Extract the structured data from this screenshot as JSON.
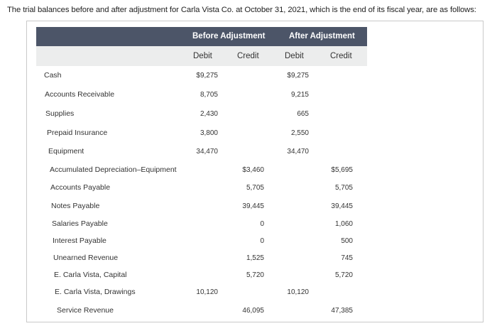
{
  "intro_text": "The trial balances before and after adjustment for Carla Vista Co. at October 31, 2021, which is the end of its fiscal year, are as follows:",
  "table": {
    "group_before": "Before Adjustment",
    "group_after": "After Adjustment",
    "col_debit": "Debit",
    "col_credit": "Credit",
    "rows": [
      {
        "account": "Cash",
        "before_debit": "$9,275",
        "before_credit": "",
        "after_debit": "$9,275",
        "after_credit": ""
      },
      {
        "account": "Accounts Receivable",
        "before_debit": "8,705",
        "before_credit": "",
        "after_debit": "9,215",
        "after_credit": ""
      },
      {
        "account": "Supplies",
        "before_debit": "2,430",
        "before_credit": "",
        "after_debit": "665",
        "after_credit": ""
      },
      {
        "account": "Prepaid Insurance",
        "before_debit": "3,800",
        "before_credit": "",
        "after_debit": "2,550",
        "after_credit": ""
      },
      {
        "account": "Equipment",
        "before_debit": "34,470",
        "before_credit": "",
        "after_debit": "34,470",
        "after_credit": ""
      },
      {
        "account": "Accumulated Depreciation–Equipment",
        "before_debit": "",
        "before_credit": "$3,460",
        "after_debit": "",
        "after_credit": "$5,695"
      },
      {
        "account": "Accounts Payable",
        "before_debit": "",
        "before_credit": "5,705",
        "after_debit": "",
        "after_credit": "5,705"
      },
      {
        "account": "Notes Payable",
        "before_debit": "",
        "before_credit": "39,445",
        "after_debit": "",
        "after_credit": "39,445"
      },
      {
        "account": "Salaries Payable",
        "before_debit": "",
        "before_credit": "0",
        "after_debit": "",
        "after_credit": "1,060"
      },
      {
        "account": "Interest Payable",
        "before_debit": "",
        "before_credit": "0",
        "after_debit": "",
        "after_credit": "500"
      },
      {
        "account": "Unearned Revenue",
        "before_debit": "",
        "before_credit": "1,525",
        "after_debit": "",
        "after_credit": "745"
      },
      {
        "account": "E. Carla Vista, Capital",
        "before_debit": "",
        "before_credit": "5,720",
        "after_debit": "",
        "after_credit": "5,720"
      },
      {
        "account": "E. Carla Vista, Drawings",
        "before_debit": "10,120",
        "before_credit": "",
        "after_debit": "10,120",
        "after_credit": ""
      },
      {
        "account": "Service Revenue",
        "before_debit": "",
        "before_credit": "46,095",
        "after_debit": "",
        "after_credit": "47,385"
      }
    ]
  }
}
